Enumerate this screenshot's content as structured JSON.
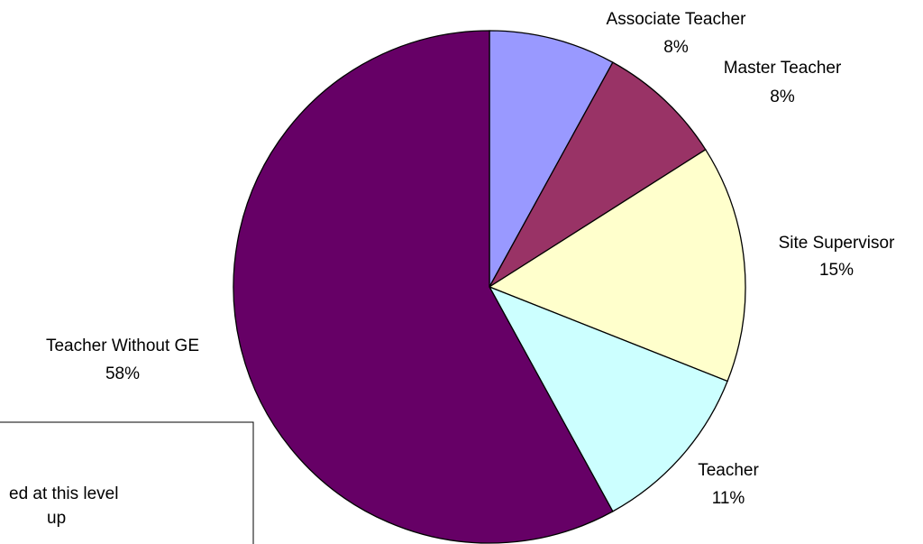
{
  "chart_data": {
    "type": "pie",
    "categories": [
      "Associate Teacher",
      "Master Teacher",
      "Site Supervisor",
      "Teacher",
      "Teacher Without GE"
    ],
    "values": [
      8,
      8,
      15,
      11,
      58
    ],
    "value_labels": [
      "8%",
      "8%",
      "15%",
      "11%",
      "58%"
    ],
    "colors": [
      "#9999ff",
      "#993366",
      "#ffffcc",
      "#ccffff",
      "#660066"
    ],
    "annotation": [
      "ed at this level",
      "up"
    ]
  }
}
